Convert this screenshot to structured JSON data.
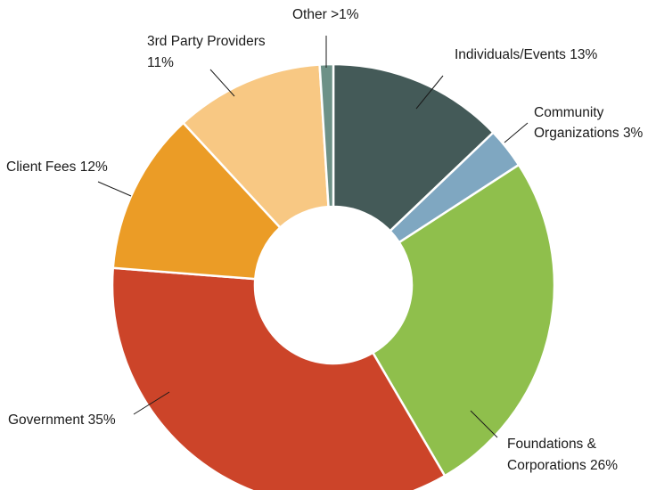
{
  "chart_data": {
    "type": "pie",
    "donut": true,
    "title": "",
    "legend": "none",
    "slices": [
      {
        "name": "Individuals/Events",
        "label": "Individuals/Events 13%",
        "value": 13,
        "color": "#445a58"
      },
      {
        "name": "Community Organizations",
        "label_lines": [
          "Community",
          "Organizations 3%"
        ],
        "value": 3,
        "color": "#7fa7c1"
      },
      {
        "name": "Foundations & Corporations",
        "label_lines": [
          "Foundations &",
          "Corporations 26%"
        ],
        "value": 26,
        "color": "#8fbf4c"
      },
      {
        "name": "Government",
        "label": "Government 35%",
        "value": 35,
        "color": "#cc4429"
      },
      {
        "name": "Client Fees",
        "label": "Client Fees 12%",
        "value": 12,
        "color": "#eb9c26"
      },
      {
        "name": "3rd Party Providers",
        "label_lines": [
          "3rd Party Providers",
          "11%"
        ],
        "value": 11,
        "color": "#f8c883"
      },
      {
        "name": "Other",
        "label": "Other >1%",
        "value": 1,
        "color": "#6d9187"
      }
    ]
  }
}
